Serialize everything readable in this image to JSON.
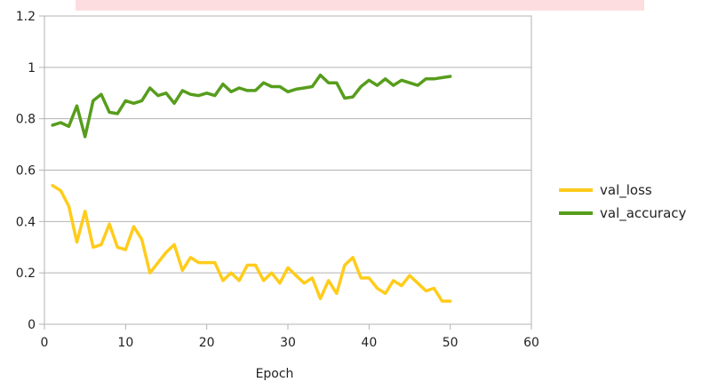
{
  "chart_data": {
    "type": "line",
    "title": "",
    "xlabel": "Epoch",
    "ylabel": "",
    "xlim": [
      0,
      60
    ],
    "ylim": [
      0,
      1.2
    ],
    "xticks": [
      "0",
      "10",
      "20",
      "30",
      "40",
      "50",
      "60"
    ],
    "yticks": [
      "0",
      "0.2",
      "0.4",
      "0.6",
      "0.8",
      "1",
      "1.2"
    ],
    "grid": "horizontal",
    "legend_position": "right",
    "x": [
      1,
      2,
      3,
      4,
      5,
      6,
      7,
      8,
      9,
      10,
      11,
      12,
      13,
      14,
      15,
      16,
      17,
      18,
      19,
      20,
      21,
      22,
      23,
      24,
      25,
      26,
      27,
      28,
      29,
      30,
      31,
      32,
      33,
      34,
      35,
      36,
      37,
      38,
      39,
      40,
      41,
      42,
      43,
      44,
      45,
      46,
      47,
      48,
      49,
      50
    ],
    "series": [
      {
        "name": "val_loss",
        "color": "#ffcc1a",
        "values": [
          0.54,
          0.52,
          0.46,
          0.32,
          0.44,
          0.3,
          0.31,
          0.39,
          0.3,
          0.29,
          0.38,
          0.33,
          0.2,
          0.24,
          0.28,
          0.31,
          0.21,
          0.26,
          0.24,
          0.24,
          0.24,
          0.17,
          0.2,
          0.17,
          0.23,
          0.23,
          0.17,
          0.2,
          0.16,
          0.22,
          0.19,
          0.16,
          0.18,
          0.1,
          0.17,
          0.12,
          0.23,
          0.26,
          0.18,
          0.18,
          0.14,
          0.12,
          0.17,
          0.15,
          0.19,
          0.16,
          0.13,
          0.14,
          0.09,
          0.09
        ]
      },
      {
        "name": "val_accuracy",
        "color": "#579d1c",
        "values": [
          0.775,
          0.785,
          0.77,
          0.85,
          0.73,
          0.87,
          0.895,
          0.825,
          0.82,
          0.87,
          0.86,
          0.87,
          0.92,
          0.89,
          0.9,
          0.86,
          0.91,
          0.895,
          0.89,
          0.9,
          0.89,
          0.935,
          0.905,
          0.92,
          0.91,
          0.91,
          0.94,
          0.925,
          0.925,
          0.905,
          0.915,
          0.92,
          0.925,
          0.97,
          0.94,
          0.94,
          0.88,
          0.885,
          0.925,
          0.95,
          0.93,
          0.955,
          0.93,
          0.95,
          0.94,
          0.93,
          0.955,
          0.955,
          0.96,
          0.965
        ]
      }
    ]
  }
}
